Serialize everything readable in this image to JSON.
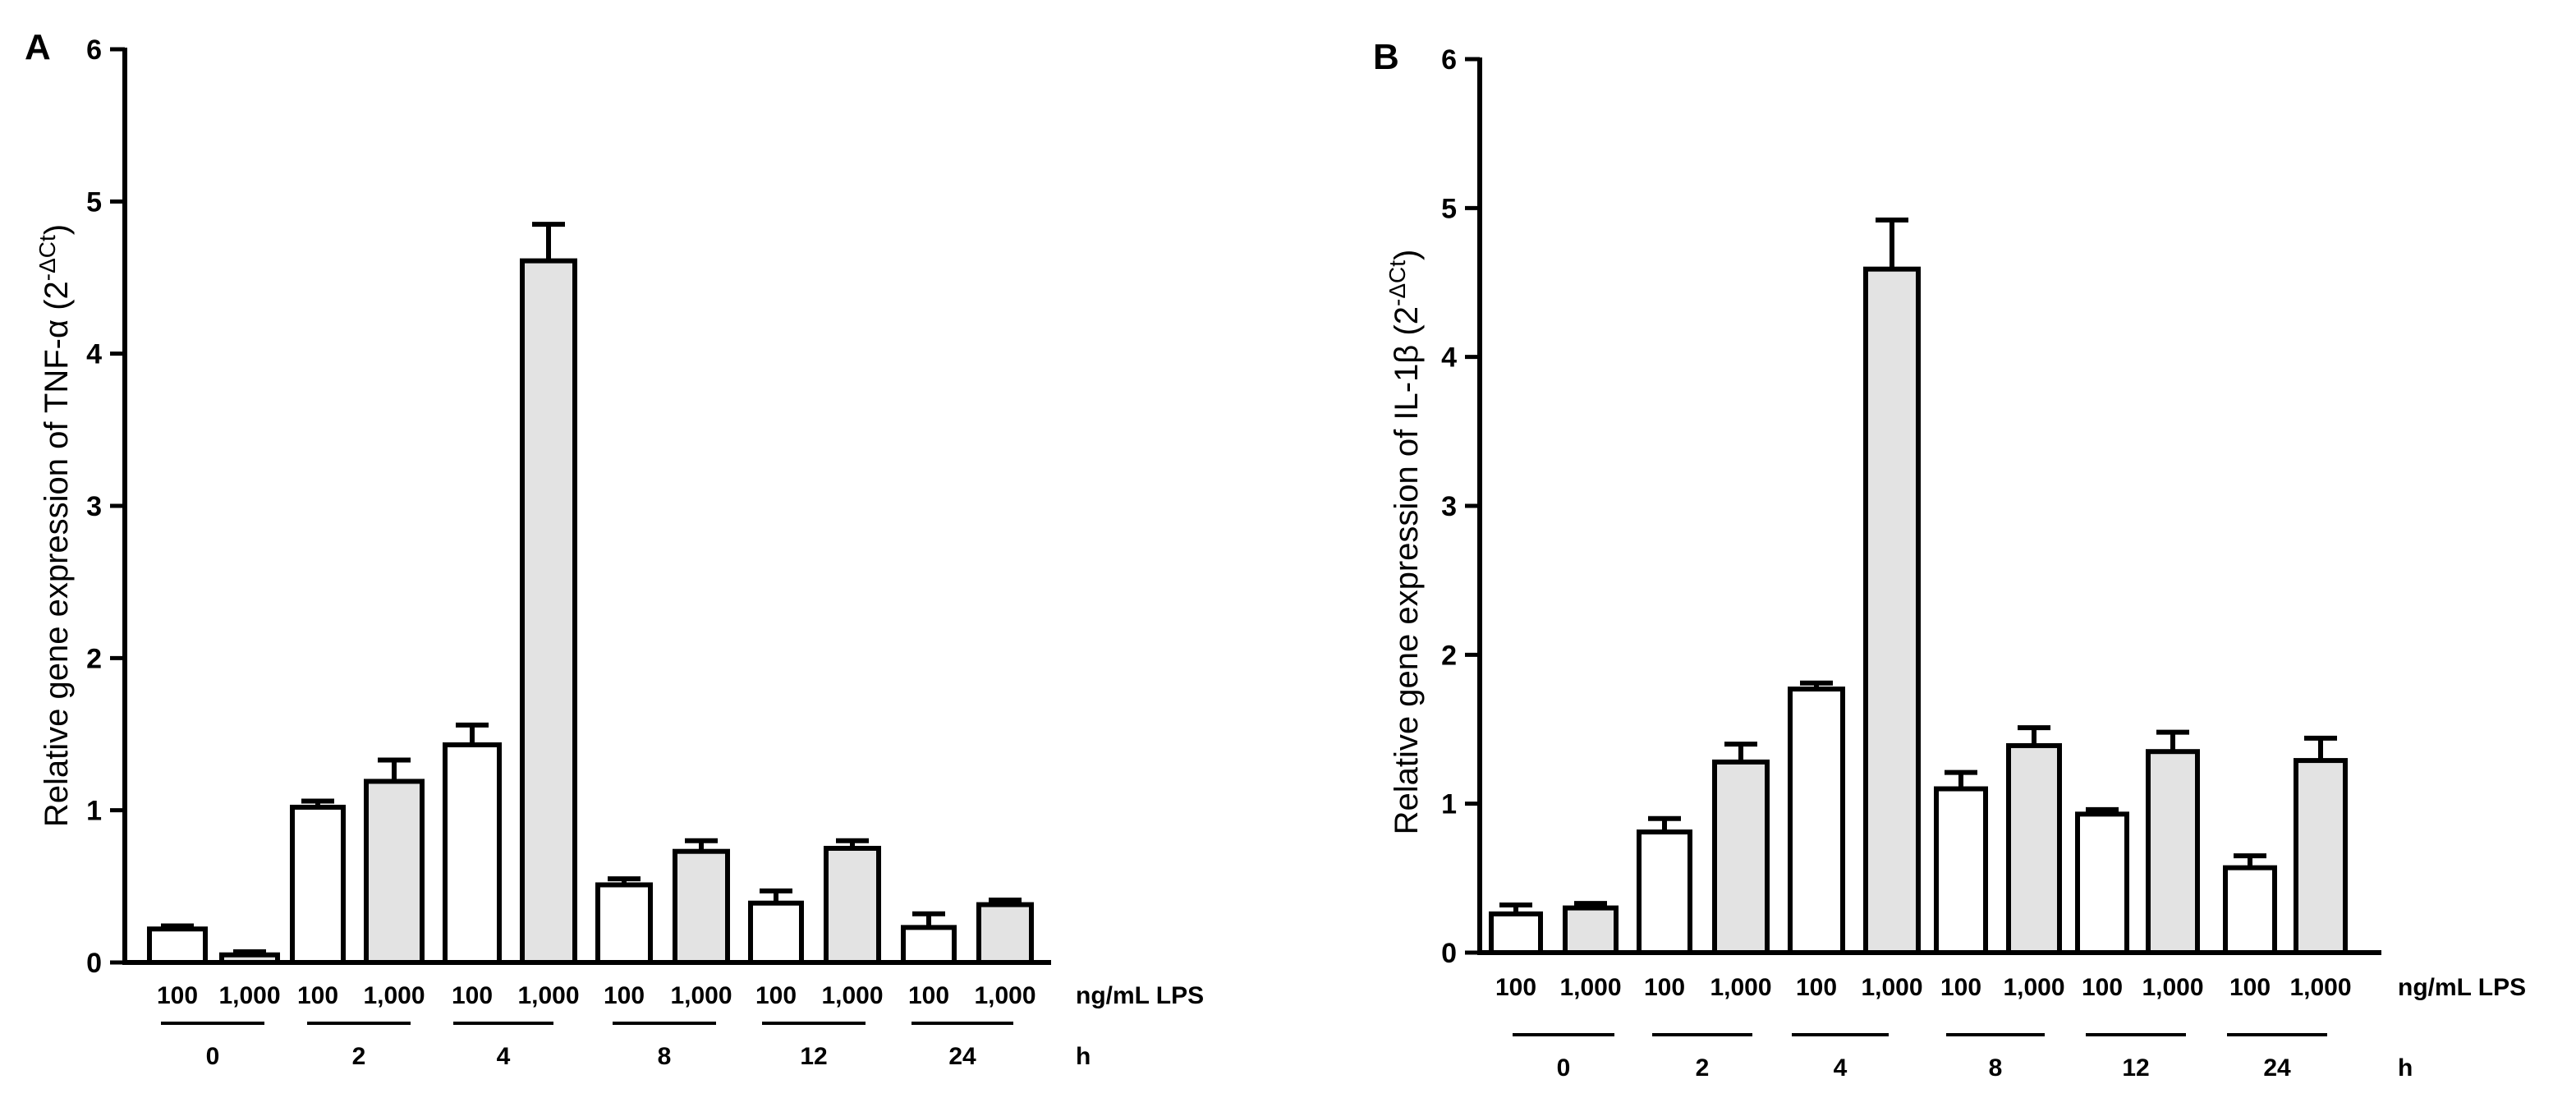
{
  "chart_data": [
    {
      "type": "bar",
      "panel": "A",
      "ylabel_prefix": "Relative gene expression of TNF-α",
      "ylabel_base": "2",
      "ylabel_sup": "-ΔCt",
      "ylim": [
        0,
        6
      ],
      "yticks": [
        "0",
        "1",
        "2",
        "3",
        "4",
        "5",
        "6"
      ],
      "categories": [
        "100",
        "1,000",
        "100",
        "1,000",
        "100",
        "1,000",
        "100",
        "1,000",
        "100",
        "1,000",
        "100",
        "1,000"
      ],
      "groups": [
        "0",
        "2",
        "4",
        "8",
        "12",
        "24"
      ],
      "category_unit": "ng/mL LPS",
      "group_unit": "h",
      "values": [
        0.22,
        0.05,
        1.02,
        1.19,
        1.43,
        4.61,
        0.51,
        0.73,
        0.39,
        0.75,
        0.23,
        0.38
      ],
      "errors": [
        0.02,
        0.02,
        0.04,
        0.14,
        0.13,
        0.24,
        0.04,
        0.07,
        0.08,
        0.05,
        0.09,
        0.03
      ],
      "fills": [
        "#ffffff",
        "#e3e3e3"
      ]
    },
    {
      "type": "bar",
      "panel": "B",
      "ylabel_prefix": "Relative gene expression of IL-1β",
      "ylabel_base": "2",
      "ylabel_sup": "-ΔCt",
      "ylim": [
        0,
        6
      ],
      "yticks": [
        "0",
        "1",
        "2",
        "3",
        "4",
        "5",
        "6"
      ],
      "categories": [
        "100",
        "1,000",
        "100",
        "1,000",
        "100",
        "1,000",
        "100",
        "1,000",
        "100",
        "1,000",
        "100",
        "1,000"
      ],
      "groups": [
        "0",
        "2",
        "4",
        "8",
        "12",
        "24"
      ],
      "category_unit": "ng/mL LPS",
      "group_unit": "h",
      "values": [
        0.26,
        0.3,
        0.81,
        1.28,
        1.77,
        4.59,
        1.1,
        1.39,
        0.93,
        1.35,
        0.57,
        1.29
      ],
      "errors": [
        0.06,
        0.03,
        0.09,
        0.12,
        0.04,
        0.33,
        0.11,
        0.12,
        0.03,
        0.13,
        0.08,
        0.15
      ],
      "fills": [
        "#ffffff",
        "#e3e3e3"
      ]
    }
  ]
}
